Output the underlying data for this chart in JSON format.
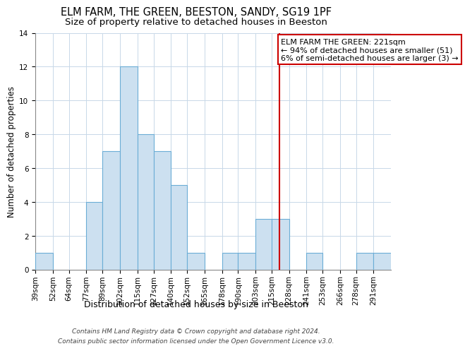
{
  "title": "ELM FARM, THE GREEN, BEESTON, SANDY, SG19 1PF",
  "subtitle": "Size of property relative to detached houses in Beeston",
  "xlabel": "Distribution of detached houses by size in Beeston",
  "ylabel": "Number of detached properties",
  "bin_labels": [
    "39sqm",
    "52sqm",
    "64sqm",
    "77sqm",
    "89sqm",
    "102sqm",
    "115sqm",
    "127sqm",
    "140sqm",
    "152sqm",
    "165sqm",
    "178sqm",
    "190sqm",
    "203sqm",
    "215sqm",
    "228sqm",
    "241sqm",
    "253sqm",
    "266sqm",
    "278sqm",
    "291sqm"
  ],
  "bin_edges": [
    39,
    52,
    64,
    77,
    89,
    102,
    115,
    127,
    140,
    152,
    165,
    178,
    190,
    203,
    215,
    228,
    241,
    253,
    266,
    278,
    291
  ],
  "counts": [
    1,
    0,
    0,
    4,
    7,
    12,
    8,
    7,
    5,
    1,
    0,
    1,
    1,
    3,
    3,
    0,
    1,
    0,
    0,
    1,
    1
  ],
  "bar_color": "#cce0f0",
  "bar_edge_color": "#6badd6",
  "property_line_x": 221,
  "property_line_color": "#cc0000",
  "annotation_line1": "ELM FARM THE GREEN: 221sqm",
  "annotation_line2": "← 94% of detached houses are smaller (51)",
  "annotation_line3": "6% of semi-detached houses are larger (3) →",
  "annotation_box_color": "#ffffff",
  "annotation_border_color": "#cc0000",
  "ylim": [
    0,
    14
  ],
  "yticks": [
    0,
    2,
    4,
    6,
    8,
    10,
    12,
    14
  ],
  "footer_line1": "Contains HM Land Registry data © Crown copyright and database right 2024.",
  "footer_line2": "Contains public sector information licensed under the Open Government Licence v3.0.",
  "title_fontsize": 10.5,
  "subtitle_fontsize": 9.5,
  "xlabel_fontsize": 9,
  "ylabel_fontsize": 8.5,
  "tick_fontsize": 7.5,
  "annotation_fontsize": 8,
  "footer_fontsize": 6.5,
  "grid_color": "#c8d8e8"
}
